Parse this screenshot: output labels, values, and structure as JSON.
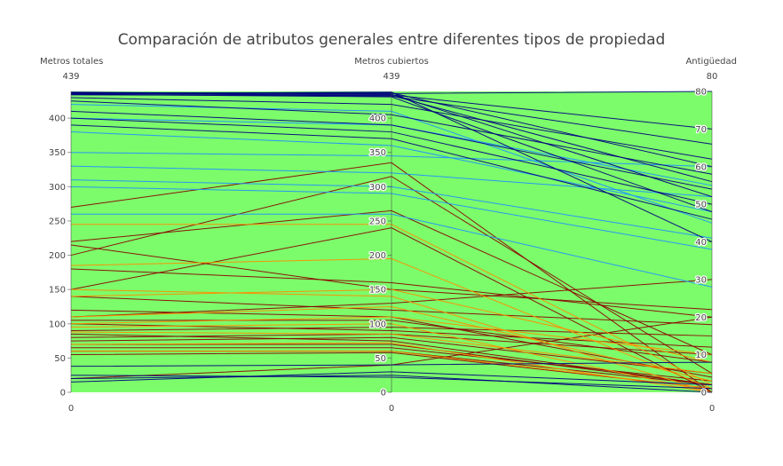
{
  "chart_data": {
    "type": "parallel_coordinates",
    "title": "Comparación de atributos generales entre diferentes tipos de propiedad",
    "axes": [
      {
        "label": "Metros totales",
        "range": [
          0,
          439
        ],
        "ticks": [
          0,
          50,
          100,
          150,
          200,
          250,
          300,
          350,
          400
        ],
        "range_min_label": "0",
        "range_max_label": "439"
      },
      {
        "label": "Metros cubiertos",
        "range": [
          0,
          439
        ],
        "ticks": [
          0,
          50,
          100,
          150,
          200,
          250,
          300,
          350,
          400
        ],
        "range_min_label": "0",
        "range_max_label": "439"
      },
      {
        "label": "Antigüedad",
        "range": [
          0,
          80
        ],
        "ticks": [
          0,
          10,
          20,
          30,
          40,
          50,
          60,
          70,
          80
        ],
        "range_min_label": "0",
        "range_max_label": "80"
      }
    ],
    "colors": {
      "green_group": "#7cfc6a",
      "blue_group": "#000080",
      "light_blue_group": "#1e90ff",
      "dark_red_group": "#8b0000",
      "orange_group": "#ff8c00"
    },
    "line_groups": [
      {
        "color_key": "dark_red_group",
        "lines": [
          [
            270,
            335,
            0
          ],
          [
            200,
            315,
            5
          ],
          [
            220,
            265,
            10
          ],
          [
            150,
            240,
            0
          ],
          [
            180,
            160,
            20
          ],
          [
            215,
            150,
            22
          ],
          [
            110,
            130,
            30
          ],
          [
            105,
            105,
            8
          ],
          [
            90,
            95,
            15
          ],
          [
            80,
            85,
            10
          ],
          [
            75,
            80,
            5
          ],
          [
            70,
            70,
            2
          ],
          [
            65,
            65,
            3
          ],
          [
            60,
            60,
            2
          ],
          [
            55,
            58,
            1
          ],
          [
            85,
            75,
            2
          ],
          [
            20,
            40,
            20
          ],
          [
            120,
            110,
            4
          ],
          [
            100,
            90,
            12
          ],
          [
            140,
            120,
            18
          ]
        ]
      },
      {
        "color_key": "orange_group",
        "lines": [
          [
            245,
            245,
            2
          ],
          [
            185,
            195,
            1
          ],
          [
            150,
            140,
            0
          ],
          [
            110,
            125,
            3
          ],
          [
            95,
            100,
            0
          ],
          [
            88,
            85,
            5
          ],
          [
            70,
            72,
            0
          ],
          [
            60,
            60,
            1
          ],
          [
            140,
            150,
            8
          ],
          [
            100,
            110,
            10
          ]
        ]
      },
      {
        "color_key": "light_blue_group",
        "lines": [
          [
            400,
            390,
            55
          ],
          [
            380,
            360,
            48
          ],
          [
            330,
            320,
            52
          ],
          [
            300,
            290,
            38
          ],
          [
            350,
            345,
            60
          ],
          [
            420,
            410,
            45
          ],
          [
            260,
            260,
            28
          ],
          [
            310,
            300,
            41
          ]
        ]
      },
      {
        "color_key": "blue_group",
        "lines": [
          [
            437,
            436,
            80
          ],
          [
            436,
            434,
            70
          ],
          [
            435,
            437,
            60
          ],
          [
            434,
            433,
            56
          ],
          [
            438,
            435,
            52
          ],
          [
            437,
            432,
            66
          ],
          [
            436,
            438,
            40
          ],
          [
            435,
            431,
            48
          ],
          [
            430,
            420,
            62
          ],
          [
            425,
            405,
            58
          ],
          [
            410,
            390,
            54
          ],
          [
            400,
            380,
            50
          ],
          [
            390,
            370,
            46
          ],
          [
            20,
            25,
            0
          ],
          [
            15,
            30,
            2
          ],
          [
            38,
            40,
            8
          ],
          [
            25,
            22,
            1
          ]
        ]
      }
    ]
  }
}
